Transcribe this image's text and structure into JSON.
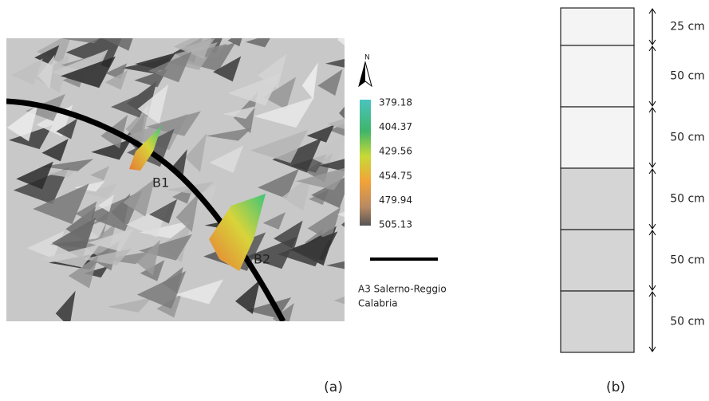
{
  "map": {
    "north": "N",
    "labels": [
      "B1",
      "B2"
    ],
    "legend": [
      379.18,
      404.37,
      429.56,
      454.75,
      479.94,
      505.13
    ],
    "road_label_lines": [
      "A3 Salerno-Reggio",
      "Calabria"
    ],
    "caption": "(a)"
  },
  "column": {
    "layers": [
      "25 cm",
      "50 cm",
      "50 cm",
      "50 cm",
      "50 cm",
      "50 cm"
    ],
    "caption": "(b)"
  }
}
